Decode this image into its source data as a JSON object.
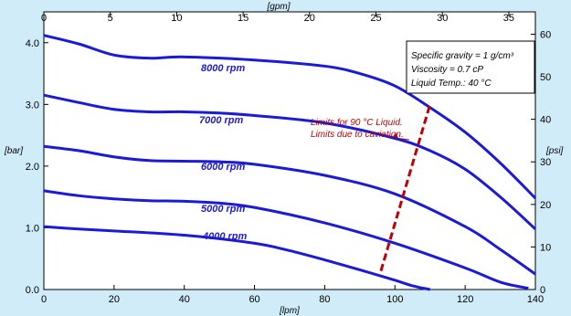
{
  "chart_data": {
    "type": "line",
    "x_primary": {
      "label": "[lpm]",
      "ticks": [
        "0",
        "20",
        "40",
        "60",
        "80",
        "100",
        "120",
        "140"
      ],
      "range": [
        0,
        140
      ]
    },
    "x_secondary": {
      "label": "[gpm]",
      "ticks": [
        "0",
        "5",
        "10",
        "15",
        "20",
        "25",
        "30",
        "35"
      ],
      "range": [
        0,
        37
      ]
    },
    "y_primary": {
      "label": "[bar]",
      "ticks": [
        "0.0",
        "1.0",
        "2.0",
        "3.0",
        "4.0"
      ],
      "range": [
        0,
        4.5
      ]
    },
    "y_secondary": {
      "label": "[psi]",
      "ticks": [
        "0",
        "10",
        "20",
        "30",
        "40",
        "50",
        "60"
      ],
      "range": [
        0,
        65.25
      ]
    },
    "series": [
      {
        "name": "8000 rpm",
        "color": "#1a1ad8",
        "x": [
          0,
          10,
          20,
          30,
          40,
          60,
          80,
          90,
          100,
          110,
          120,
          130,
          140
        ],
        "y": [
          4.12,
          3.98,
          3.8,
          3.75,
          3.77,
          3.72,
          3.62,
          3.5,
          3.3,
          2.95,
          2.55,
          2.05,
          1.48
        ]
      },
      {
        "name": "7000 rpm",
        "color": "#1a1ad8",
        "x": [
          0,
          10,
          20,
          30,
          40,
          50,
          60,
          80,
          100,
          110,
          120,
          130,
          140
        ],
        "y": [
          3.15,
          3.03,
          2.92,
          2.88,
          2.88,
          2.86,
          2.82,
          2.7,
          2.45,
          2.25,
          1.95,
          1.5,
          0.98
        ]
      },
      {
        "name": "6000 rpm",
        "color": "#1a1ad8",
        "x": [
          0,
          10,
          20,
          30,
          40,
          50,
          60,
          80,
          100,
          120,
          130,
          140
        ],
        "y": [
          2.32,
          2.25,
          2.15,
          2.09,
          2.08,
          2.07,
          2.03,
          1.85,
          1.55,
          1.02,
          0.65,
          0.25
        ]
      },
      {
        "name": "5000 rpm",
        "color": "#1a1ad8",
        "x": [
          0,
          10,
          20,
          30,
          40,
          50,
          60,
          80,
          100,
          120,
          130,
          138
        ],
        "y": [
          1.6,
          1.52,
          1.47,
          1.44,
          1.43,
          1.4,
          1.33,
          1.08,
          0.75,
          0.35,
          0.12,
          0.02
        ]
      },
      {
        "name": "4000 rpm",
        "color": "#1a1ad8",
        "x": [
          0,
          10,
          20,
          40,
          60,
          70,
          80,
          90,
          100,
          105,
          110
        ],
        "y": [
          1.02,
          0.98,
          0.95,
          0.88,
          0.75,
          0.63,
          0.48,
          0.32,
          0.15,
          0.06,
          0.0
        ]
      }
    ],
    "cavitation_limit": {
      "label_lines": [
        "Limits for 90 °C Liquid.",
        "Limits due to caviation."
      ],
      "color": "#c00000",
      "style": "dashed",
      "x": [
        96,
        110
      ],
      "y": [
        0.3,
        3.0
      ]
    },
    "legend_box": {
      "placement": "top-right",
      "lines": [
        "Specific gravity = 1 g/cm³",
        "Viscosity = 0.7 cP",
        "Liquid Temp.: 40 °C"
      ]
    },
    "grid": false
  }
}
